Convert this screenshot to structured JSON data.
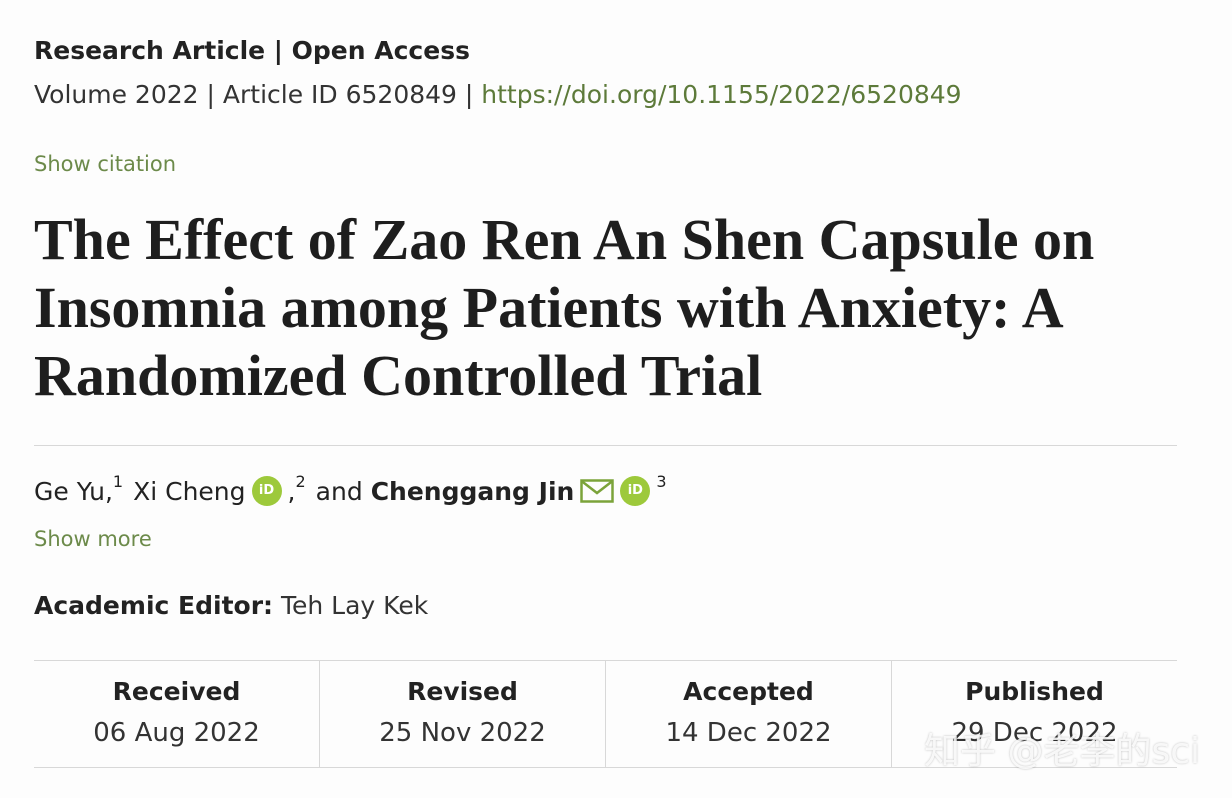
{
  "article": {
    "type_line": "Research Article | Open Access",
    "volume": "Volume 2022",
    "article_id": "Article ID 6520849",
    "doi": "https://doi.org/10.1155/2022/6520849",
    "show_citation": "Show citation",
    "title": "The Effect of Zao Ren An Shen Capsule on Insomnia among Patients with Anxiety: A Randomized Controlled Trial",
    "show_more": "Show more",
    "editor_label": "Academic Editor:",
    "editor_name": "Teh Lay Kek"
  },
  "authors": [
    {
      "name": "Ge Yu,",
      "sup": "1"
    },
    {
      "name": "Xi Cheng",
      "sup": "2"
    },
    {
      "connector": "and"
    },
    {
      "name": "Chenggang Jin",
      "sup": "3"
    }
  ],
  "orcid_label": "iD",
  "dates": [
    {
      "label": "Received",
      "value": "06 Aug 2022"
    },
    {
      "label": "Revised",
      "value": "25 Nov 2022"
    },
    {
      "label": "Accepted",
      "value": "14 Dec 2022"
    },
    {
      "label": "Published",
      "value": "29 Dec 2022"
    }
  ],
  "watermark": "知乎 @老李的sci",
  "colors": {
    "link": "#5d7a3a",
    "orcid": "#9dc93b"
  }
}
